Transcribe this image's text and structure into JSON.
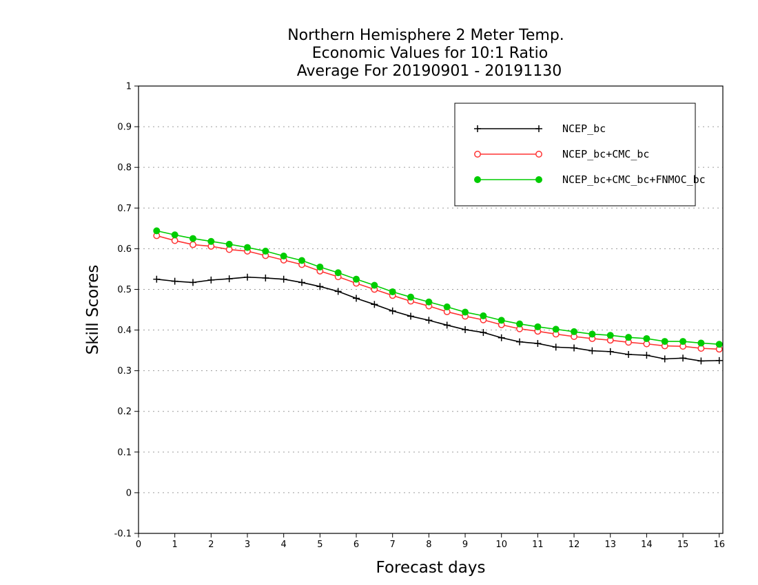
{
  "chart_data": {
    "type": "line",
    "title": [
      "Northern Hemisphere 2 Meter Temp.",
      "Economic Values for 10:1 Ratio",
      "Average For 20190901 - 20191130"
    ],
    "xlabel": "Forecast days",
    "ylabel": "Skill Scores",
    "xlim": [
      0,
      16.1
    ],
    "ylim": [
      -0.1,
      1
    ],
    "xticks": [
      0,
      1,
      2,
      3,
      4,
      5,
      6,
      7,
      8,
      9,
      10,
      11,
      12,
      13,
      14,
      15,
      16
    ],
    "xtick_labels": [
      "0",
      "1",
      "2",
      "3",
      "4",
      "5",
      "6",
      "7",
      "8",
      "9",
      "10",
      "11",
      "12",
      "13",
      "14",
      "15",
      "16"
    ],
    "yticks": [
      -0.1,
      0,
      0.1,
      0.2,
      0.3,
      0.4,
      0.5,
      0.6,
      0.7,
      0.8,
      0.9,
      1
    ],
    "ytick_labels": [
      "-0.1",
      "0",
      "0.1",
      "0.2",
      "0.3",
      "0.4",
      "0.5",
      "0.6",
      "0.7",
      "0.8",
      "0.9",
      "1"
    ],
    "grid": "horizontal dotted",
    "legend_position": "top-right",
    "x": [
      0.5,
      1.0,
      1.5,
      2.0,
      2.5,
      3.0,
      3.5,
      4.0,
      4.5,
      5.0,
      5.5,
      6.0,
      6.5,
      7.0,
      7.5,
      8.0,
      8.5,
      9.0,
      9.5,
      10.0,
      10.5,
      11.0,
      11.5,
      12.0,
      12.5,
      13.0,
      13.5,
      14.0,
      14.5,
      15.0,
      15.5,
      16.0
    ],
    "series": [
      {
        "name": "NCEP_bc",
        "color": "#000000",
        "marker": "plus",
        "values": [
          0.525,
          0.52,
          0.517,
          0.523,
          0.526,
          0.53,
          0.528,
          0.525,
          0.517,
          0.507,
          0.495,
          0.478,
          0.463,
          0.447,
          0.434,
          0.424,
          0.412,
          0.401,
          0.394,
          0.381,
          0.371,
          0.367,
          0.358,
          0.356,
          0.349,
          0.347,
          0.34,
          0.338,
          0.329,
          0.331,
          0.324,
          0.325
        ]
      },
      {
        "name": "NCEP_bc+CMC_bc",
        "color": "#ff3333",
        "marker": "open-circle",
        "values": [
          0.632,
          0.62,
          0.61,
          0.606,
          0.598,
          0.594,
          0.583,
          0.572,
          0.561,
          0.545,
          0.531,
          0.515,
          0.5,
          0.485,
          0.471,
          0.459,
          0.445,
          0.434,
          0.425,
          0.413,
          0.403,
          0.397,
          0.39,
          0.384,
          0.379,
          0.375,
          0.37,
          0.366,
          0.361,
          0.36,
          0.355,
          0.353
        ]
      },
      {
        "name": "NCEP_bc+CMC_bc+FNMOC_bc",
        "color": "#00cc00",
        "marker": "filled-circle",
        "values": [
          0.644,
          0.634,
          0.625,
          0.618,
          0.611,
          0.603,
          0.594,
          0.582,
          0.571,
          0.555,
          0.541,
          0.525,
          0.51,
          0.494,
          0.481,
          0.469,
          0.457,
          0.444,
          0.435,
          0.424,
          0.415,
          0.408,
          0.402,
          0.396,
          0.39,
          0.387,
          0.382,
          0.379,
          0.372,
          0.372,
          0.368,
          0.365
        ]
      }
    ]
  }
}
